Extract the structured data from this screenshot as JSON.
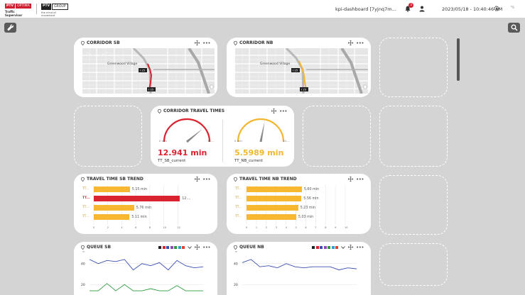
{
  "header": {
    "logo1_ptv": "PTV",
    "logo1_optima": "OPTIMA",
    "logo1_sub": "Traffic Supervisor",
    "logo2_ptv": "PTV",
    "logo2_group": "GROUP",
    "logo2_sub": "the mind of movement",
    "dashboard_name": "kpi-dashboard [7yjnq7m...",
    "notification_count": "3",
    "datetime": "2023/05/18 - 10:40:46 AM",
    "units_label": "ᴹ⁄ₖ"
  },
  "widgets": {
    "corridor_sb": {
      "title": "CORRIDOR SB",
      "map_label": "Greenwood Village",
      "shield_top": "I 25",
      "shield_bottom": "I 25"
    },
    "corridor_nb": {
      "title": "CORRIDOR NB",
      "map_label": "Greenwood Village",
      "shield_top": "I 25",
      "shield_bottom": "I 25"
    },
    "travel_times": {
      "title": "CORRIDOR TRAVEL TIMES",
      "sb": {
        "value": "12.941 min",
        "name": "TT_SB_current",
        "min_label": "0 min",
        "max_label": "12....",
        "fraction": 0.78,
        "color": "#d9232e"
      },
      "nb": {
        "value": "5.5989 min",
        "name": "TT_NB_current",
        "min_label": "0 min",
        "max_label": "10....",
        "fraction": 0.56,
        "color": "#f2b72f"
      }
    },
    "trend_sb": {
      "title": "TRAVEL TIME SB TREND",
      "rows": [
        {
          "label": "TT...",
          "value": 5.15,
          "value_label": "5.15 min",
          "color": "#f7b731"
        },
        {
          "label": "TT...",
          "value": 12.3,
          "value_label": "12....",
          "color": "#d9232e"
        },
        {
          "label": "TT...",
          "value": 5.76,
          "value_label": "5.76 min",
          "color": "#f7b731"
        },
        {
          "label": "TT...",
          "value": 5.11,
          "value_label": "5.11 min",
          "color": "#f7b731"
        }
      ],
      "xmax": 14,
      "ticks": [
        "0",
        "2",
        "4",
        "6",
        "8",
        "10",
        "12"
      ]
    },
    "trend_nb": {
      "title": "TRAVEL TIME NB TREND",
      "rows": [
        {
          "label": "TT...",
          "value": 5.6,
          "value_label": "5.60 min",
          "color": "#f7b731"
        },
        {
          "label": "TT...",
          "value": 5.56,
          "value_label": "5.56 min",
          "color": "#f7b731"
        },
        {
          "label": "TT...",
          "value": 5.23,
          "value_label": "5.23 min",
          "color": "#f7b731"
        },
        {
          "label": "TT...",
          "value": 5.03,
          "value_label": "5.03 min",
          "color": "#f7b731"
        }
      ],
      "xmax": 10,
      "ticks": [
        "0",
        "1",
        "2",
        "3",
        "4",
        "5",
        "6",
        "7",
        "8",
        "9",
        "10"
      ]
    },
    "queue_sb": {
      "title": "QUEUE SB",
      "unit_label": "m",
      "y_ticks": [
        "40",
        "20"
      ],
      "ymin": 10,
      "ymax": 50,
      "series": [
        {
          "name": "",
          "color": "#3c4fb0",
          "values": [
            44,
            40,
            43,
            42,
            44,
            34,
            40,
            38,
            41,
            34,
            43,
            38,
            36,
            37
          ]
        },
        {
          "name": "",
          "color": "#2e9b3f",
          "values": [
            14,
            14,
            21,
            14,
            20,
            14,
            14,
            16,
            14,
            14,
            19,
            14,
            14,
            14
          ]
        }
      ],
      "legend_colors": [
        "#222222",
        "#d9232e",
        "#3c4fb0",
        "#8c4ab5",
        "#2e9b3f",
        "#2c9fc9",
        "#e3402f"
      ]
    },
    "queue_nb": {
      "title": "QUEUE NB",
      "unit_label": "m",
      "y_ticks": [
        "40",
        "20"
      ],
      "ymin": 10,
      "ymax": 50,
      "series": [
        {
          "name": "",
          "color": "#3c4fb0",
          "values": [
            41,
            44,
            37,
            38,
            36,
            40,
            37,
            36,
            37,
            37,
            37,
            34,
            36,
            35
          ]
        }
      ],
      "legend_colors": [
        "#222222",
        "#d9232e",
        "#3c4fb0",
        "#8c4ab5",
        "#2e9b3f",
        "#2c9fc9",
        "#e3402f"
      ]
    }
  }
}
